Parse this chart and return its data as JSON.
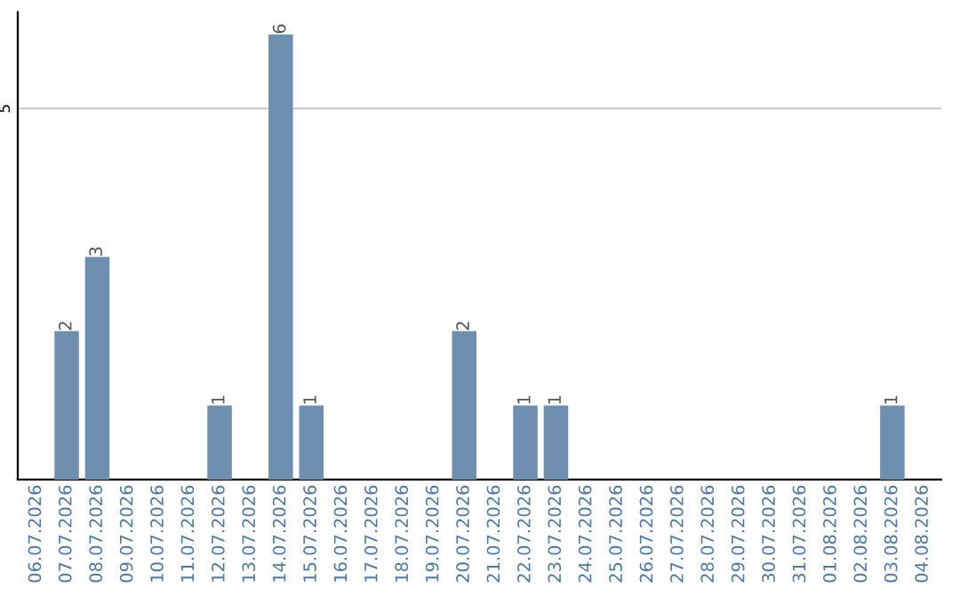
{
  "chart_data": {
    "type": "bar",
    "categories": [
      "06.07.2026",
      "07.07.2026",
      "08.07.2026",
      "09.07.2026",
      "10.07.2026",
      "11.07.2026",
      "12.07.2026",
      "13.07.2026",
      "14.07.2026",
      "15.07.2026",
      "16.07.2026",
      "17.07.2026",
      "18.07.2026",
      "19.07.2026",
      "20.07.2026",
      "21.07.2026",
      "22.07.2026",
      "23.07.2026",
      "24.07.2026",
      "25.07.2026",
      "26.07.2026",
      "27.07.2026",
      "28.07.2026",
      "29.07.2026",
      "30.07.2026",
      "31.07.2026",
      "01.08.2026",
      "02.08.2026",
      "03.08.2026",
      "04.08.2026"
    ],
    "values": [
      0,
      2,
      3,
      0,
      0,
      0,
      1,
      0,
      6,
      1,
      0,
      0,
      0,
      0,
      2,
      0,
      1,
      1,
      0,
      0,
      0,
      0,
      0,
      0,
      0,
      0,
      0,
      0,
      1,
      0
    ],
    "value_labels": [
      null,
      "2",
      "3",
      null,
      null,
      null,
      "1",
      null,
      "6",
      "1",
      null,
      null,
      null,
      null,
      "2",
      null,
      "1",
      "1",
      null,
      null,
      null,
      null,
      null,
      null,
      null,
      null,
      null,
      null,
      "1",
      null
    ],
    "color": "#6f8fb0",
    "ylim": [
      0,
      6.3
    ],
    "yticks": [
      5
    ],
    "grid": "y",
    "legend": false
  }
}
